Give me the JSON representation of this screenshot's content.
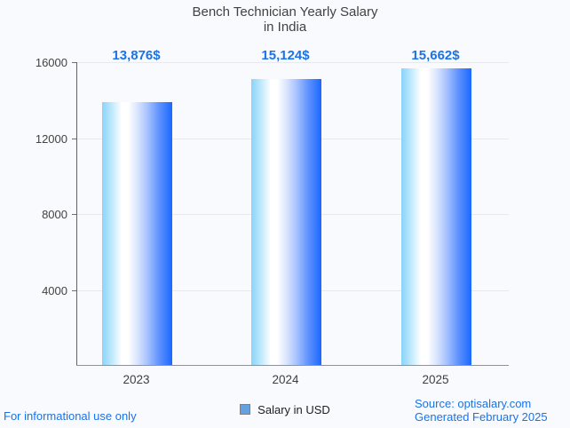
{
  "title": {
    "line1": "Bench Technician Yearly Salary",
    "line2": "in India"
  },
  "legend": {
    "label": "Salary in USD",
    "marker_color": "#64a1e0"
  },
  "footer": {
    "left": "For informational use only",
    "source": "Source: optisalary.com",
    "generated": "Generated February 2025"
  },
  "colors": {
    "accent_blue": "#1a73e8",
    "bar_gradient_start": "#87d3f9",
    "bar_gradient_mid": "#ffffff",
    "bar_gradient_end": "#1a68fe",
    "grid_line": "#e7e9ec",
    "axis_line": "#5f6368",
    "text_dark": "#3c4043",
    "background": "#f9fafd"
  },
  "chart_data": {
    "type": "bar",
    "title": "Bench Technician Yearly Salary in India",
    "categories": [
      "2023",
      "2024",
      "2025"
    ],
    "series": [
      {
        "name": "Salary in USD",
        "values": [
          13876,
          15124,
          15662
        ]
      }
    ],
    "value_labels": [
      "13,876$",
      "15,124$",
      "15,662$"
    ],
    "xlabel": "",
    "ylabel": "",
    "ylim": [
      0,
      16000
    ],
    "yticks": [
      4000,
      8000,
      12000,
      16000
    ],
    "grid": true,
    "legend_position": "bottom"
  }
}
